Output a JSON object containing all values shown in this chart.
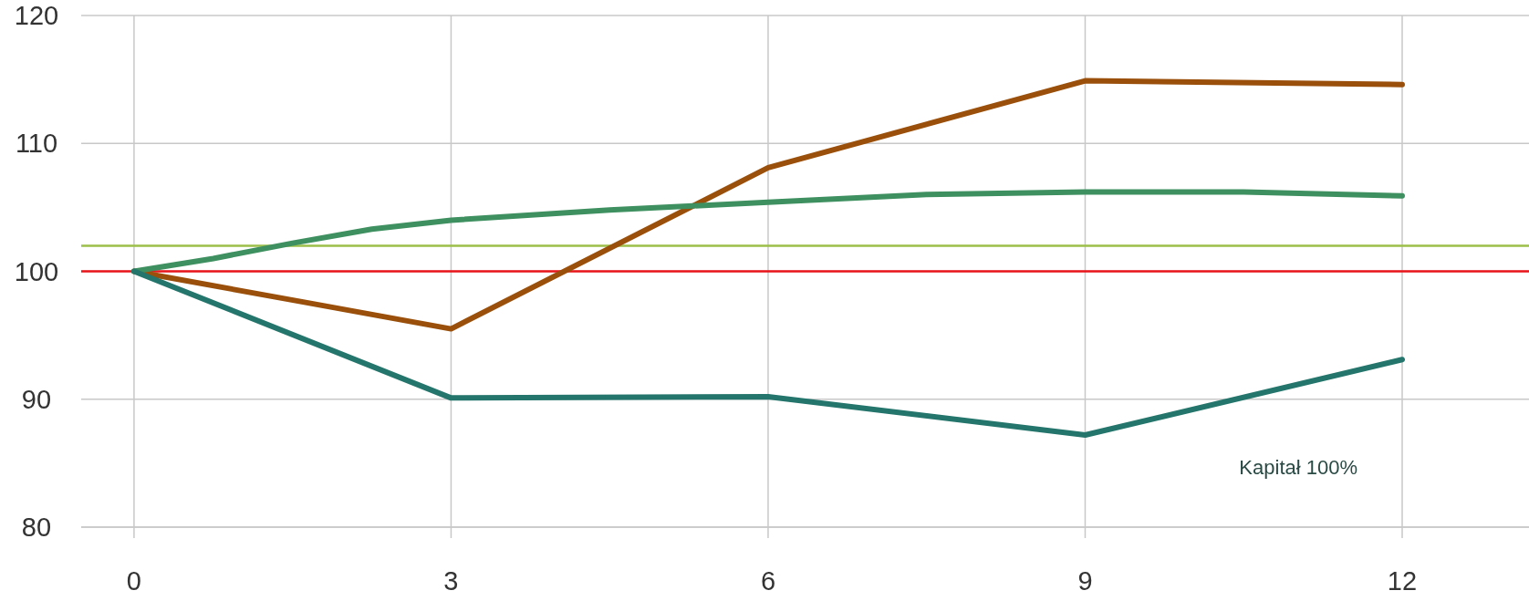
{
  "chart_data": {
    "type": "line",
    "xlim": [
      -0.5,
      13.2
    ],
    "ylim": [
      80,
      120
    ],
    "xticks": [
      0,
      3,
      6,
      9,
      12
    ],
    "yticks": [
      80,
      90,
      100,
      110,
      120
    ],
    "grid": true,
    "marker": "none",
    "line_style": "solid",
    "series": [
      {
        "color": "#9a4f0a",
        "x": [
          0,
          1.6,
          3,
          6,
          9,
          12
        ],
        "values": [
          100,
          97.6,
          95.5,
          108.1,
          114.9,
          114.6
        ]
      },
      {
        "color": "#3f9060",
        "x": [
          0,
          0.75,
          1.5,
          2.25,
          3,
          4.5,
          6,
          7.5,
          9,
          10.5,
          12
        ],
        "values": [
          100,
          101,
          102.2,
          103.3,
          104,
          104.8,
          105.4,
          106,
          106.2,
          106.2,
          105.9
        ]
      },
      {
        "color": "#24756b",
        "x": [
          0,
          3,
          6,
          9,
          12
        ],
        "values": [
          100,
          90.1,
          90.2,
          87.2,
          93.1
        ]
      }
    ],
    "ref_lines": [
      {
        "axis": "y",
        "value": 102,
        "color": "#9cbf4a"
      },
      {
        "axis": "y",
        "value": 100,
        "color": "#e8141a"
      }
    ],
    "annotations": [
      "Kapitał 100%"
    ]
  }
}
